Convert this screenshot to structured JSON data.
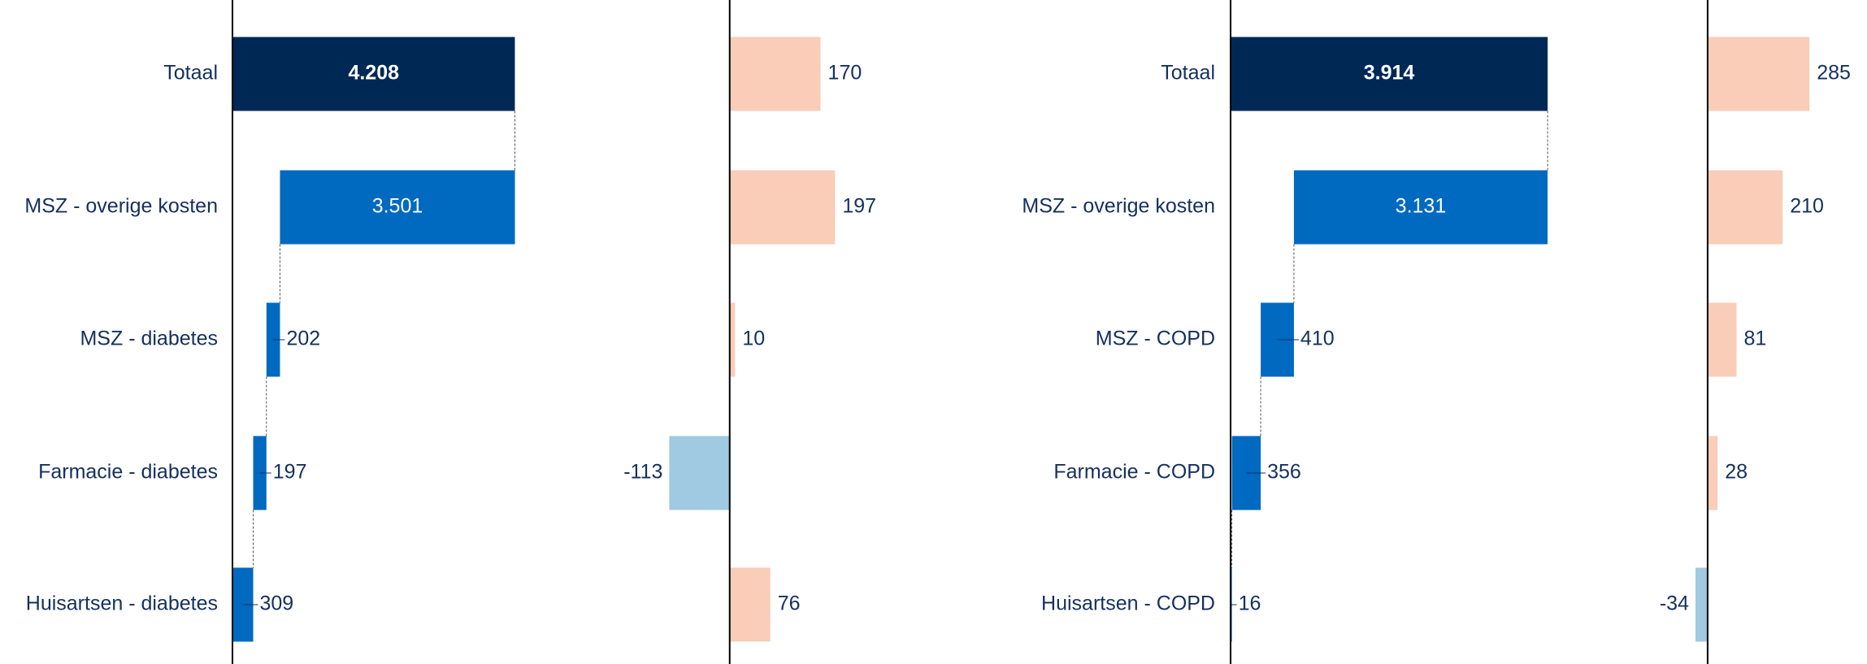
{
  "chart_data": [
    {
      "type": "waterfall",
      "categories": [
        "Totaal",
        "MSZ - overige kosten",
        "MSZ - diabetes",
        "Farmacie - diabetes",
        "Huisartsen - diabetes"
      ],
      "values": [
        4208,
        3501,
        202,
        197,
        309
      ],
      "value_labels": [
        "4.208",
        "3.501",
        "202",
        "197",
        "309"
      ],
      "total_color": "#002855",
      "color": "#0069c0",
      "xlim": [
        0,
        7400
      ]
    },
    {
      "type": "hbar",
      "values": [
        170,
        197,
        10,
        -113,
        76
      ],
      "positive_color": "#f9cdb8",
      "negative_color": "#a0c9e2",
      "xlim": [
        -290,
        493
      ]
    },
    {
      "type": "waterfall",
      "categories": [
        "Totaal",
        "MSZ - overige kosten",
        "MSZ - COPD",
        "Farmacie - COPD",
        "Huisartsen - COPD"
      ],
      "values": [
        3914,
        3131,
        410,
        356,
        16
      ],
      "value_labels": [
        "3.914",
        "3.131",
        "410",
        "356",
        "16"
      ],
      "total_color": "#002855",
      "color": "#0069c0",
      "xlim": [
        0,
        5900
      ]
    },
    {
      "type": "hbar",
      "values": [
        285,
        210,
        81,
        28,
        -34
      ],
      "positive_color": "#f9cdb8",
      "negative_color": "#a0c9e2",
      "xlim": [
        -225,
        446
      ]
    }
  ]
}
